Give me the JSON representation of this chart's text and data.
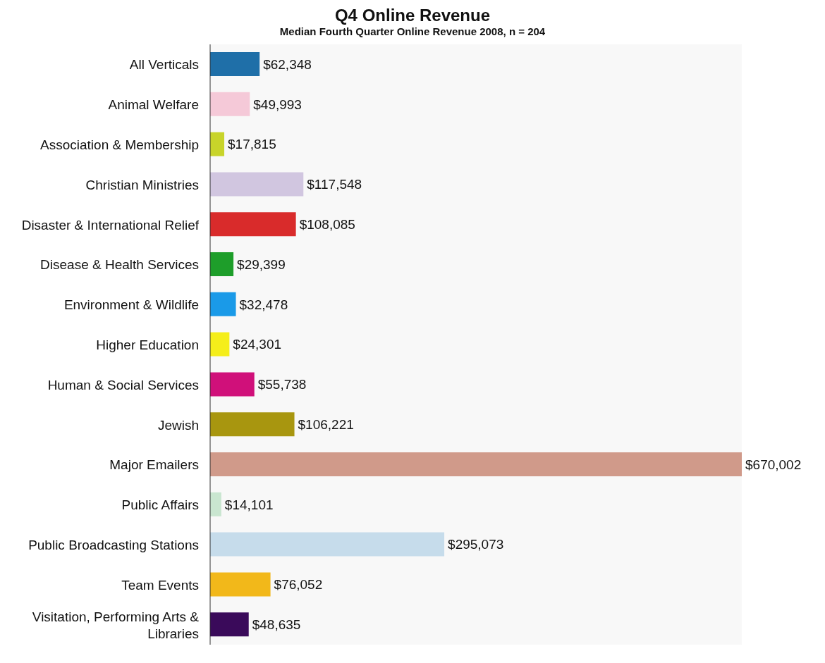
{
  "chart_data": {
    "type": "bar",
    "orientation": "horizontal",
    "title": "Q4 Online Revenue",
    "subtitle": "Median Fourth Quarter Online Revenue 2008, n = 204",
    "categories": [
      "All Verticals",
      "Animal Welfare",
      "Association & Membership",
      "Christian Ministries",
      "Disaster & International Relief",
      "Disease & Health Services",
      "Environment & Wildlife",
      "Higher Education",
      "Human & Social Services",
      "Jewish",
      "Major Emailers",
      "Public Affairs",
      "Public Broadcasting Stations",
      "Team Events",
      "Visitation, Performing Arts & Libraries"
    ],
    "values": [
      62348,
      49993,
      17815,
      117548,
      108085,
      29399,
      32478,
      24301,
      55738,
      106221,
      670002,
      14101,
      295073,
      76052,
      48635
    ],
    "value_labels": [
      "$62,348",
      "$49,993",
      "$17,815",
      "$117,548",
      "$108,085",
      "$29,399",
      "$32,478",
      "$24,301",
      "$55,738",
      "$106,221",
      "$670,002",
      "$14,101",
      "$295,073",
      "$76,052",
      "$48,635"
    ],
    "colors": [
      "#1f6fa8",
      "#f5c9d8",
      "#c8d42a",
      "#d1c6e0",
      "#d92b2b",
      "#1e9e2a",
      "#1a9ae8",
      "#f5ee1a",
      "#d0107a",
      "#a8960f",
      "#d09a8a",
      "#c9e6d0",
      "#c6dceb",
      "#f2b81a",
      "#3a0a5a"
    ]
  }
}
